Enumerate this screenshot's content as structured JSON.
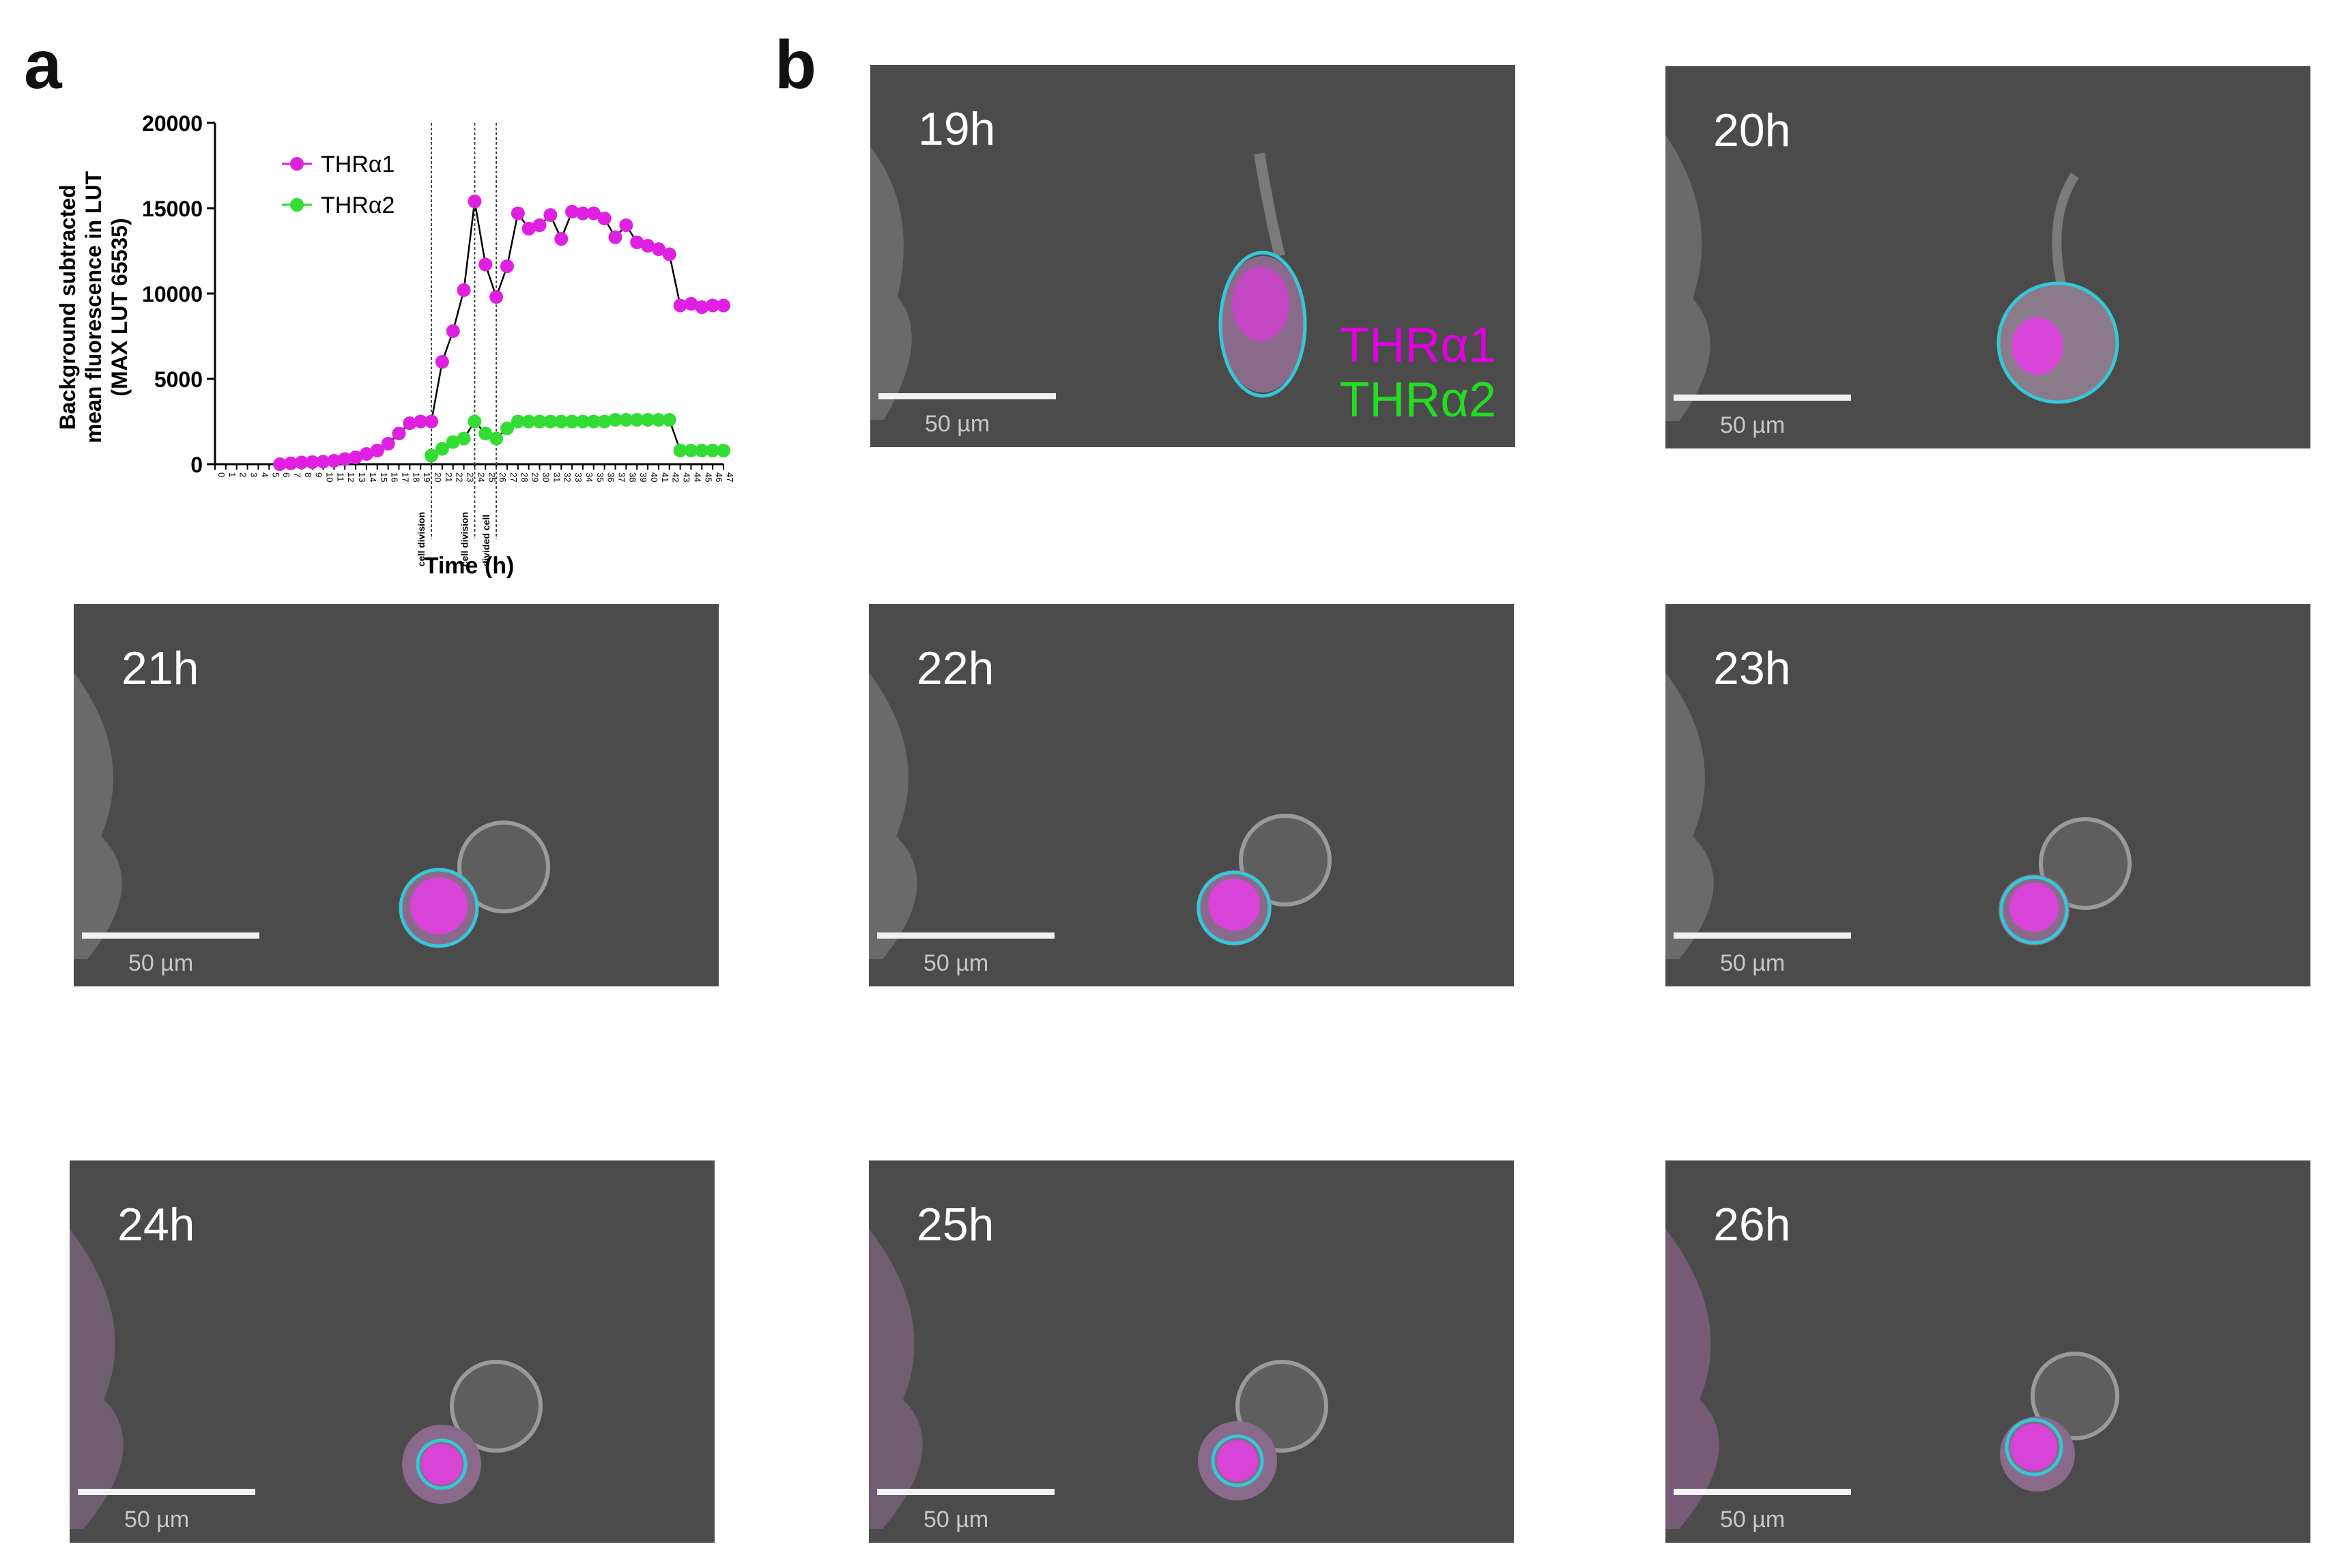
{
  "panels": {
    "a": "a",
    "b": "b"
  },
  "chart_data": {
    "type": "line",
    "ylabel_lines": [
      "Background subtracted",
      "mean fluorescence in LUT",
      "(MAX LUT 65535)"
    ],
    "xlabel": "Time (h)",
    "ylim": [
      0,
      20000
    ],
    "yticks": [
      "0",
      "5000",
      "10000",
      "15000",
      "20000"
    ],
    "xlim": [
      0,
      47
    ],
    "x_ticks": [
      "0",
      "1",
      "2",
      "3",
      "4",
      "5",
      "6",
      "7",
      "8",
      "9",
      "10",
      "11",
      "12",
      "13",
      "14",
      "15",
      "16",
      "17",
      "18",
      "19",
      "20",
      "21",
      "22",
      "23",
      "24",
      "25",
      "26",
      "27",
      "28",
      "29",
      "30",
      "31",
      "32",
      "33",
      "34",
      "35",
      "36",
      "37",
      "38",
      "39",
      "40",
      "41",
      "42",
      "43",
      "44",
      "45",
      "46",
      "47"
    ],
    "vlines": [
      {
        "x": 20,
        "label": "cell division"
      },
      {
        "x": 24,
        "label": "cell division"
      },
      {
        "x": 26,
        "label": "divided cell"
      }
    ],
    "series": [
      {
        "name": "THRα1",
        "color": "#e020e0",
        "x": [
          6,
          7,
          8,
          9,
          10,
          11,
          12,
          13,
          14,
          15,
          16,
          17,
          18,
          19,
          20,
          21,
          22,
          23,
          24,
          25,
          26,
          27,
          28,
          29,
          30,
          31,
          32,
          33,
          34,
          35,
          36,
          37,
          38,
          39,
          40,
          41,
          42,
          43,
          44,
          45,
          46,
          47
        ],
        "y": [
          0,
          50,
          100,
          120,
          150,
          200,
          300,
          400,
          600,
          800,
          1200,
          1800,
          2400,
          2500,
          2500,
          6000,
          7800,
          10200,
          15400,
          11700,
          9800,
          11600,
          14700,
          13800,
          14000,
          14600,
          13200,
          14800,
          14700,
          14700,
          14400,
          13300,
          14000,
          13000,
          12800,
          12600,
          12300,
          9300,
          9400,
          9200,
          9300,
          9300
        ]
      },
      {
        "name": "THRα2",
        "color": "#33dd33",
        "x": [
          20,
          21,
          22,
          23,
          24,
          25,
          26,
          27,
          28,
          29,
          30,
          31,
          32,
          33,
          34,
          35,
          36,
          37,
          38,
          39,
          40,
          41,
          42,
          43,
          44,
          45,
          46,
          47
        ],
        "y": [
          500,
          900,
          1300,
          1500,
          2500,
          1800,
          1500,
          2100,
          2500,
          2500,
          2500,
          2500,
          2500,
          2500,
          2500,
          2500,
          2500,
          2600,
          2600,
          2600,
          2600,
          2600,
          2600,
          800,
          800,
          800,
          800,
          800
        ]
      }
    ]
  },
  "micrographs": [
    {
      "time": "19h",
      "scale": "50 µm",
      "channel1": "THRα1",
      "channel2": "THRα2"
    },
    {
      "time": "20h",
      "scale": "50 µm"
    },
    {
      "time": "21h",
      "scale": "50 µm"
    },
    {
      "time": "22h",
      "scale": "50 µm"
    },
    {
      "time": "23h",
      "scale": "50 µm"
    },
    {
      "time": "24h",
      "scale": "50 µm"
    },
    {
      "time": "25h",
      "scale": "50 µm"
    },
    {
      "time": "26h",
      "scale": "50 µm"
    }
  ]
}
